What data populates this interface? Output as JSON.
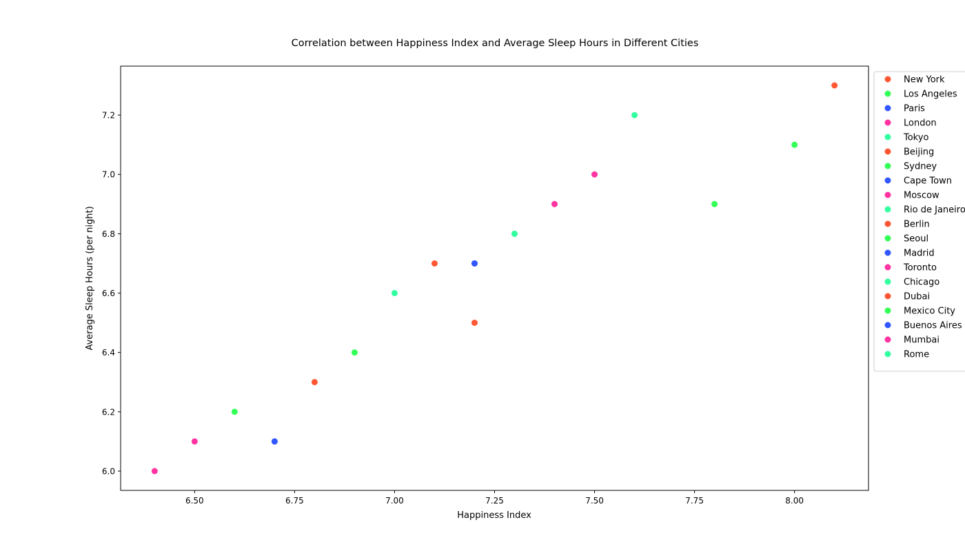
{
  "chart_data": {
    "type": "scatter",
    "title": "Correlation between Happiness Index and Average Sleep Hours in Different Cities",
    "xlabel": "Happiness Index",
    "ylabel": "Average Sleep Hours (per night)",
    "xlim": [
      6.315,
      8.185
    ],
    "ylim": [
      5.935,
      7.365
    ],
    "xticks": [
      6.5,
      6.75,
      7.0,
      7.25,
      7.5,
      7.75,
      8.0
    ],
    "xtick_labels": [
      "6.50",
      "6.75",
      "7.00",
      "7.25",
      "7.50",
      "7.75",
      "8.00"
    ],
    "yticks": [
      6.0,
      6.2,
      6.4,
      6.6,
      6.8,
      7.0,
      7.2
    ],
    "ytick_labels": [
      "6.0",
      "6.2",
      "6.4",
      "6.6",
      "6.8",
      "7.0",
      "7.2"
    ],
    "grid": false,
    "legend_position": "outside-right",
    "series": [
      {
        "name": "New York",
        "color": "#ff5733",
        "x": [
          8.1
        ],
        "y": [
          7.3
        ]
      },
      {
        "name": "Los Angeles",
        "color": "#33ff57",
        "x": [
          8.0
        ],
        "y": [
          7.1
        ]
      },
      {
        "name": "Paris",
        "color": "#3357ff",
        "x": [
          7.2
        ],
        "y": [
          6.7
        ]
      },
      {
        "name": "London",
        "color": "#ff33a1",
        "x": [
          7.5
        ],
        "y": [
          7.0
        ]
      },
      {
        "name": "Tokyo",
        "color": "#33ffa1",
        "x": [
          7.6
        ],
        "y": [
          7.2
        ]
      },
      {
        "name": "Beijing",
        "color": "#ff5733",
        "x": [
          6.8
        ],
        "y": [
          6.3
        ]
      },
      {
        "name": "Sydney",
        "color": "#33ff57",
        "x": [
          7.8
        ],
        "y": [
          6.9
        ]
      },
      {
        "name": "Cape Town",
        "color": "#3357ff",
        "x": [
          6.7
        ],
        "y": [
          6.1
        ]
      },
      {
        "name": "Moscow",
        "color": "#ff33a1",
        "x": [
          6.4
        ],
        "y": [
          6.0
        ]
      },
      {
        "name": "Rio de Janeiro",
        "color": "#33ffa1",
        "x": [
          7.3
        ],
        "y": [
          6.8
        ]
      },
      {
        "name": "Berlin",
        "color": "#ff5733",
        "x": [
          7.1
        ],
        "y": [
          6.7
        ]
      },
      {
        "name": "Seoul",
        "color": "#33ff57",
        "x": [
          6.9
        ],
        "y": [
          6.4
        ]
      },
      {
        "name": "Madrid",
        "color": "#3357ff",
        "x": [
          7.2
        ],
        "y": [
          6.7
        ]
      },
      {
        "name": "Toronto",
        "color": "#ff33a1",
        "x": [
          7.4
        ],
        "y": [
          6.9
        ]
      },
      {
        "name": "Chicago",
        "color": "#33ffa1",
        "x": [
          7.0
        ],
        "y": [
          6.6
        ]
      },
      {
        "name": "Dubai",
        "color": "#ff5733",
        "x": [
          7.2
        ],
        "y": [
          6.5
        ]
      },
      {
        "name": "Mexico City",
        "color": "#33ff57",
        "x": [
          6.6
        ],
        "y": [
          6.2
        ]
      },
      {
        "name": "Buenos Aires",
        "color": "#3357ff",
        "x": [
          6.7
        ],
        "y": [
          6.1
        ]
      },
      {
        "name": "Mumbai",
        "color": "#ff33a1",
        "x": [
          6.5
        ],
        "y": [
          6.1
        ]
      },
      {
        "name": "Rome",
        "color": "#33ffa1",
        "x": [
          7.3
        ],
        "y": [
          6.8
        ]
      }
    ]
  }
}
